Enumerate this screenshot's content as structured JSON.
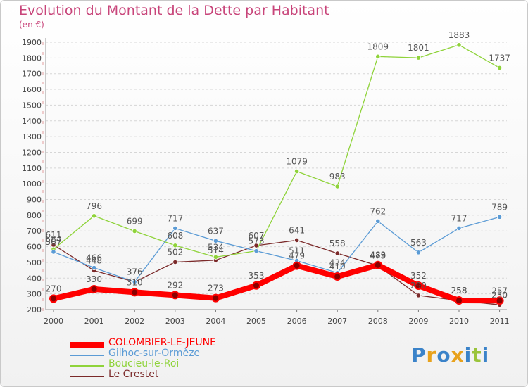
{
  "title": "Evolution du Montant de la Dette par Habitant",
  "subtitle": "(en €)",
  "logo": {
    "text": "Proxiti",
    "colors": [
      "#3b83c9",
      "#e8a21c",
      "#3b83c9",
      "#e8a21c",
      "#3b83c9",
      "#9ac43a",
      "#3b83c9"
    ]
  },
  "chart_data": {
    "type": "line",
    "title": "Evolution du Montant de la Dette par Habitant",
    "subtitle": "(en €)",
    "xlabel": "",
    "ylabel": "",
    "x": [
      "2000",
      "2001",
      "2002",
      "2003",
      "2004",
      "2005",
      "2006",
      "2007",
      "2008",
      "2009",
      "2010",
      "2011"
    ],
    "ylim": [
      200,
      1900
    ],
    "yticks": [
      200,
      300,
      400,
      500,
      600,
      700,
      800,
      900,
      1000,
      1100,
      1200,
      1300,
      1400,
      1500,
      1600,
      1700,
      1800,
      1900
    ],
    "grid": "horizontal dashed",
    "legend_position": "bottom-left",
    "series": [
      {
        "name": "COLOMBIER-LE-JEUNE",
        "color": "#ff0000",
        "values": [
          270,
          330,
          310,
          292,
          273,
          353,
          479,
          410,
          483,
          352,
          258,
          257
        ],
        "labels": [
          "270",
          "330",
          "310",
          "292",
          "273",
          "353",
          "479",
          "410",
          "483",
          "352",
          "258",
          "257"
        ]
      },
      {
        "name": "Gilhoc-sur-Ormèze",
        "color": "#5b9bd5",
        "values": [
          567,
          466,
          376,
          717,
          637,
          573,
          511,
          434,
          762,
          563,
          717,
          789
        ],
        "labels": [
          "567",
          "466",
          "376",
          "717",
          "637",
          "573",
          "511",
          "434",
          "762",
          "563",
          "717",
          "789"
        ]
      },
      {
        "name": "Boucieu-le-Roi",
        "color": "#8fd33a",
        "values": [
          584,
          796,
          699,
          608,
          534,
          573,
          1079,
          983,
          1809,
          1801,
          1883,
          1737
        ],
        "labels": [
          "584",
          "796",
          "699",
          "608",
          "534",
          "573",
          "1079",
          "983",
          "1809",
          "1801",
          "1883",
          "1737"
        ]
      },
      {
        "name": "Le Crestet",
        "color": "#7b2a2a",
        "values": [
          611,
          448,
          376,
          502,
          514,
          607,
          641,
          558,
          479,
          290,
          258,
          230
        ],
        "labels": [
          "611",
          "448",
          "376",
          "502",
          "514",
          "607",
          "641",
          "558",
          "479",
          "290",
          "258",
          "230"
        ]
      }
    ]
  }
}
